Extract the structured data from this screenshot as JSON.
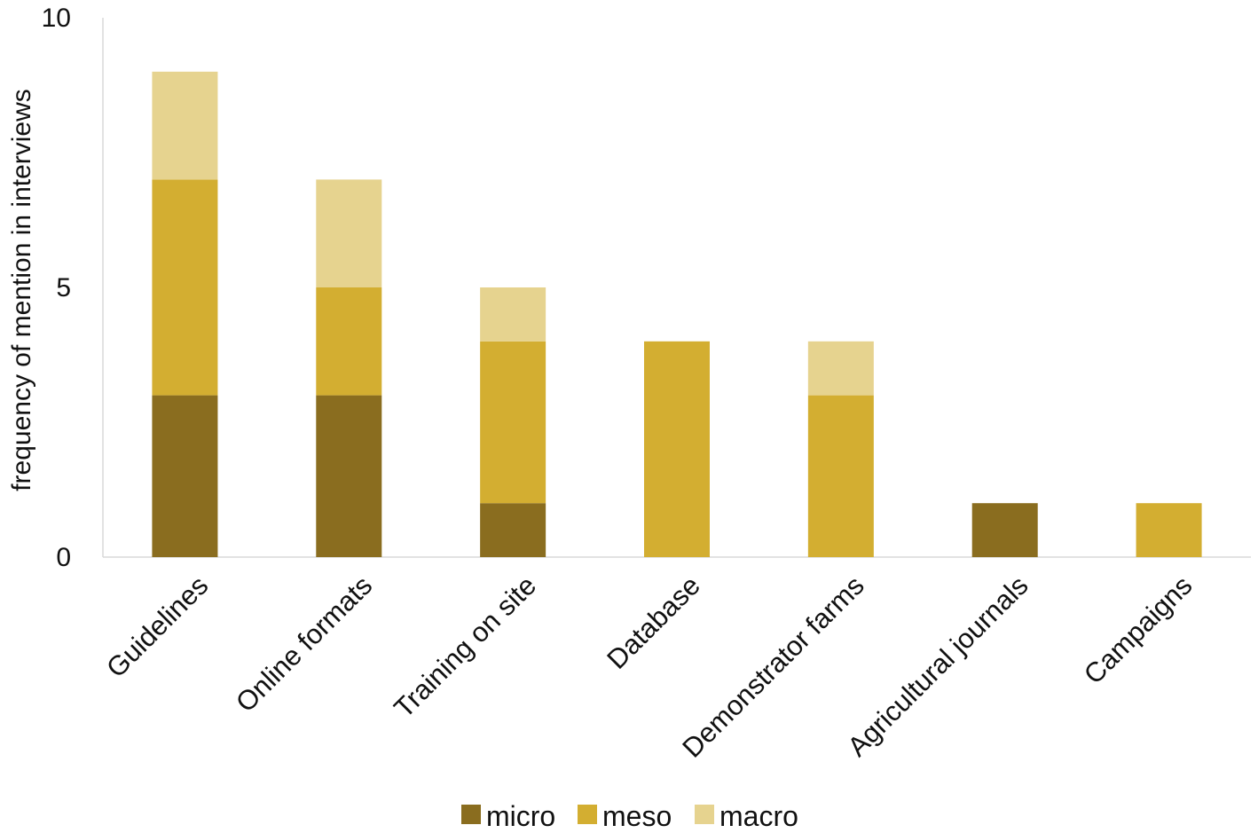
{
  "chart_data": {
    "type": "bar",
    "stacked": true,
    "categories": [
      "Guidelines",
      "Online formats",
      "Training on site",
      "Database",
      "Demonstrator farms",
      "Agricultural journals",
      "Campaigns"
    ],
    "series": [
      {
        "name": "micro",
        "color": "#8a6d1f",
        "values": [
          3,
          3,
          1,
          0,
          0,
          1,
          0
        ]
      },
      {
        "name": "meso",
        "color": "#d3ae31",
        "values": [
          4,
          2,
          3,
          4,
          3,
          0,
          1
        ]
      },
      {
        "name": "macro",
        "color": "#e6d38f",
        "values": [
          2,
          2,
          1,
          0,
          1,
          0,
          0
        ]
      }
    ],
    "ylabel": "frequency of mention in interviews",
    "xlabel": "",
    "ylim": [
      0,
      10
    ],
    "yticks": [
      0,
      5,
      10
    ],
    "legend_position": "bottom-center",
    "grid": false
  }
}
